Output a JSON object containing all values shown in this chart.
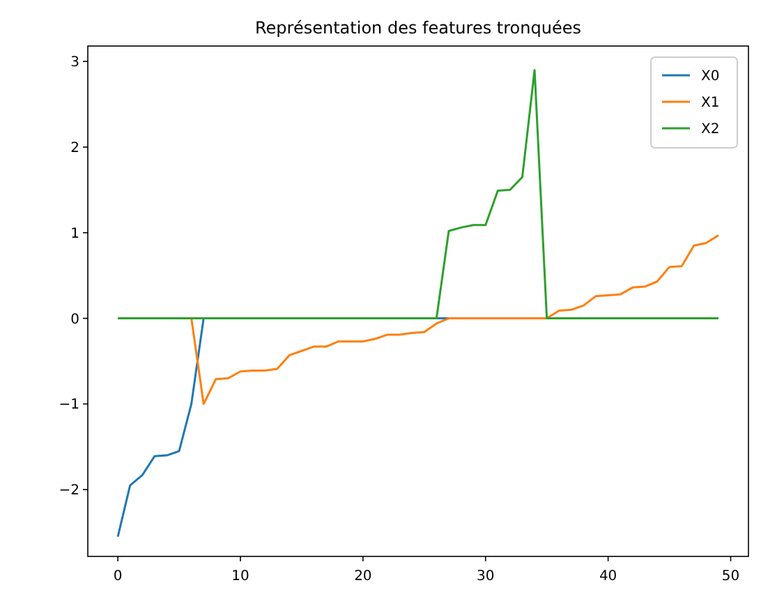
{
  "chart_data": {
    "type": "line",
    "title": "Représentation des features tronquées",
    "x": [
      0,
      1,
      2,
      3,
      4,
      5,
      6,
      7,
      8,
      9,
      10,
      11,
      12,
      13,
      14,
      15,
      16,
      17,
      18,
      19,
      20,
      21,
      22,
      23,
      24,
      25,
      26,
      27,
      28,
      29,
      30,
      31,
      32,
      33,
      34,
      35,
      36,
      37,
      38,
      39,
      40,
      41,
      42,
      43,
      44,
      45,
      46,
      47,
      48,
      49
    ],
    "series": [
      {
        "name": "X0",
        "color": "#1f77b4",
        "values": [
          -2.55,
          -1.95,
          -1.83,
          -1.61,
          -1.6,
          -1.55,
          -1.0,
          0,
          null,
          null,
          null,
          null,
          null,
          null,
          null,
          null,
          null,
          null,
          null,
          null,
          null,
          null,
          null,
          null,
          null,
          null,
          0,
          0,
          null,
          null,
          null,
          null,
          null,
          null,
          null,
          null,
          null,
          null,
          null,
          null,
          null,
          null,
          null,
          null,
          null,
          null,
          null,
          null,
          null,
          null
        ]
      },
      {
        "name": "X1",
        "color": "#ff7f0e",
        "values": [
          null,
          null,
          null,
          null,
          null,
          null,
          0,
          -1.0,
          -0.71,
          -0.7,
          -0.62,
          -0.61,
          -0.61,
          -0.59,
          -0.43,
          -0.38,
          -0.33,
          -0.33,
          -0.27,
          -0.27,
          -0.27,
          -0.24,
          -0.19,
          -0.19,
          -0.17,
          -0.16,
          -0.06,
          0,
          0,
          0,
          0,
          0,
          0,
          0,
          0,
          0,
          0.09,
          0.1,
          0.15,
          0.26,
          0.27,
          0.28,
          0.36,
          0.37,
          0.43,
          0.6,
          0.61,
          0.85,
          0.88,
          0.97
        ]
      },
      {
        "name": "X2",
        "color": "#2ca02c",
        "values": [
          0,
          0,
          0,
          0,
          0,
          0,
          0,
          0,
          0,
          0,
          0,
          0,
          0,
          0,
          0,
          0,
          0,
          0,
          0,
          0,
          0,
          0,
          0,
          0,
          0,
          0,
          0,
          1.02,
          1.06,
          1.09,
          1.09,
          1.49,
          1.5,
          1.65,
          2.9,
          0,
          0,
          0,
          0,
          0,
          0,
          0,
          0,
          0,
          0,
          0,
          0,
          0,
          0,
          0
        ]
      }
    ],
    "xlim": [
      -2.45,
      51.45
    ],
    "xticks": [
      0,
      10,
      20,
      30,
      40,
      50
    ],
    "ylim": [
      -2.78,
      3.18
    ],
    "yticks": [
      -2,
      -1,
      0,
      1,
      2,
      3
    ],
    "legend": "top right",
    "grid": false
  }
}
